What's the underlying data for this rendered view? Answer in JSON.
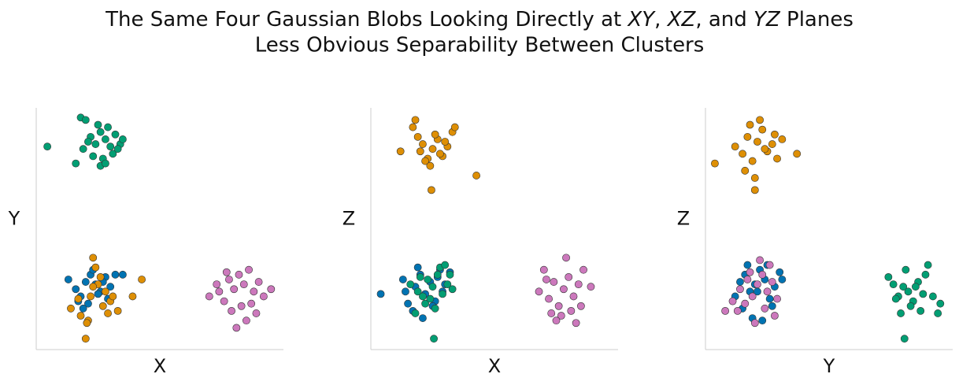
{
  "title": [
    {
      "text": "The Same Four Gaussian Blobs Looking Directly at ",
      "italic": false
    },
    {
      "text": "XY",
      "italic": true
    },
    {
      "text": ", ",
      "italic": false
    },
    {
      "text": "XZ",
      "italic": true
    },
    {
      "text": ", and ",
      "italic": false
    },
    {
      "text": "YZ",
      "italic": true
    },
    {
      "text": " Planes",
      "italic": false
    }
  ],
  "subtitle": "Less Obvious Separability Between Clusters",
  "chart_data": [
    {
      "type": "scatter",
      "xlabel": "X",
      "ylabel": "Y",
      "xlim": [
        0,
        100
      ],
      "ylim": [
        0,
        100
      ],
      "series": [
        {
          "color": "#029e73",
          "x": [
            4.5,
            18,
            20,
            22,
            24,
            26,
            28,
            30,
            32,
            34,
            23,
            27,
            31,
            19,
            25,
            29,
            33,
            21,
            26,
            28,
            16,
            35
          ],
          "y": [
            84,
            96,
            95,
            88,
            85,
            90,
            87,
            84,
            89,
            85,
            80,
            79,
            81,
            83,
            93,
            92,
            83,
            86,
            76,
            77,
            77,
            87
          ]
        },
        {
          "color": "#0173b2",
          "x": [
            13,
            16,
            18,
            20,
            22,
            24,
            26,
            28,
            30,
            32,
            17,
            21,
            25,
            29,
            23,
            35,
            19,
            27
          ],
          "y": [
            29,
            25,
            22,
            28,
            31,
            27,
            24,
            30,
            26,
            31,
            20,
            19,
            23,
            21,
            33,
            31,
            17,
            28
          ]
        },
        {
          "color": "#de8f05",
          "x": [
            20,
            14,
            18,
            22,
            25,
            28,
            30,
            33,
            26,
            24,
            21,
            17,
            27,
            23,
            31,
            42.7,
            39,
            20.5,
            29,
            23
          ],
          "y": [
            4.5,
            17,
            14,
            22,
            27,
            24,
            20,
            16,
            30,
            34,
            12,
            21,
            18,
            26,
            22,
            29,
            22,
            11,
            15,
            38
          ]
        },
        {
          "color": "#cc78bc",
          "x": [
            70,
            73,
            76,
            78,
            80,
            82,
            84,
            86,
            88,
            90,
            92,
            95,
            79,
            83,
            87,
            81,
            85,
            89,
            77,
            74
          ],
          "y": [
            22,
            27,
            20,
            29,
            25,
            31,
            27,
            33,
            24,
            28,
            22,
            25,
            16,
            18,
            19,
            9,
            12,
            15,
            32,
            24
          ]
        }
      ]
    },
    {
      "type": "scatter",
      "xlabel": "X",
      "ylabel": "Z",
      "xlim": [
        0,
        100
      ],
      "ylim": [
        0,
        100
      ],
      "series": [
        {
          "color": "#de8f05",
          "x": [
            12,
            17,
            19,
            21,
            23,
            25,
            27,
            29,
            31,
            33,
            18,
            22,
            24,
            26,
            28,
            30,
            42.7,
            24.5,
            20,
            34
          ],
          "y": [
            82,
            92,
            88,
            85,
            79,
            83,
            87,
            80,
            84,
            90,
            95,
            78,
            76,
            89,
            81,
            86,
            72,
            66,
            82,
            92
          ]
        },
        {
          "color": "#0173b2",
          "x": [
            4,
            13,
            15,
            18,
            20,
            22,
            24,
            26,
            28,
            30,
            17,
            21,
            25,
            29,
            19,
            27,
            14,
            32
          ],
          "y": [
            23,
            29,
            19,
            26,
            31,
            23,
            28,
            20,
            33,
            27,
            16,
            13,
            18,
            24,
            34,
            30,
            24,
            32
          ]
        },
        {
          "color": "#029e73",
          "x": [
            16,
            19,
            21,
            23,
            25,
            27,
            29,
            31,
            22,
            24,
            26,
            28,
            30,
            20,
            32,
            25.5,
            18,
            33
          ],
          "y": [
            27,
            24,
            22,
            29,
            26,
            31,
            23,
            27,
            19,
            21,
            17,
            34,
            35,
            30,
            31,
            4.5,
            15,
            25
          ]
        },
        {
          "color": "#cc78bc",
          "x": [
            68,
            70,
            72,
            74,
            76,
            78,
            80,
            82,
            84,
            86,
            73,
            77,
            81,
            85,
            79,
            75,
            83,
            71,
            89
          ],
          "y": [
            24,
            33,
            21,
            28,
            18,
            25,
            30,
            22,
            27,
            33,
            15,
            14,
            16,
            18,
            38,
            12,
            11,
            29,
            26
          ]
        }
      ]
    },
    {
      "type": "scatter",
      "xlabel": "Y",
      "ylabel": "Z",
      "xlim": [
        0,
        100
      ],
      "ylim": [
        0,
        100
      ],
      "series": [
        {
          "color": "#de8f05",
          "x": [
            3.8,
            12,
            15,
            17,
            19,
            21,
            23,
            25,
            27,
            29,
            31,
            16,
            20,
            24,
            28,
            18,
            22,
            37,
            20
          ],
          "y": [
            77,
            84,
            81,
            88,
            78,
            86,
            91,
            82,
            85,
            79,
            87,
            74,
            71,
            83,
            89,
            93,
            95,
            81,
            66
          ]
        },
        {
          "color": "#0173b2",
          "x": [
            12,
            14,
            16,
            18,
            20,
            22,
            24,
            26,
            28,
            30,
            15,
            19,
            23,
            27,
            17,
            25,
            21,
            31
          ],
          "y": [
            22,
            28,
            31,
            24,
            27,
            33,
            29,
            21,
            26,
            32,
            17,
            13,
            12,
            18,
            35,
            35,
            24,
            29
          ]
        },
        {
          "color": "#cc78bc",
          "x": [
            8,
            11,
            14,
            17,
            19,
            21,
            23,
            25,
            27,
            29,
            13,
            16,
            20,
            24,
            28,
            22,
            18,
            26
          ],
          "y": [
            16,
            20,
            25,
            29,
            22,
            27,
            31,
            24,
            28,
            21,
            16,
            19,
            11,
            17,
            14,
            37,
            32,
            35
          ]
        },
        {
          "color": "#029e73",
          "x": [
            74,
            76,
            78,
            80,
            82,
            84,
            86,
            88,
            90,
            92,
            95,
            79,
            83,
            87,
            81,
            85,
            89,
            77,
            94,
            80.5
          ],
          "y": [
            30,
            27,
            22,
            26,
            24,
            20,
            28,
            23,
            35,
            22,
            19,
            15,
            18,
            16,
            33,
            26,
            31,
            21,
            15,
            4.5
          ]
        }
      ]
    }
  ]
}
